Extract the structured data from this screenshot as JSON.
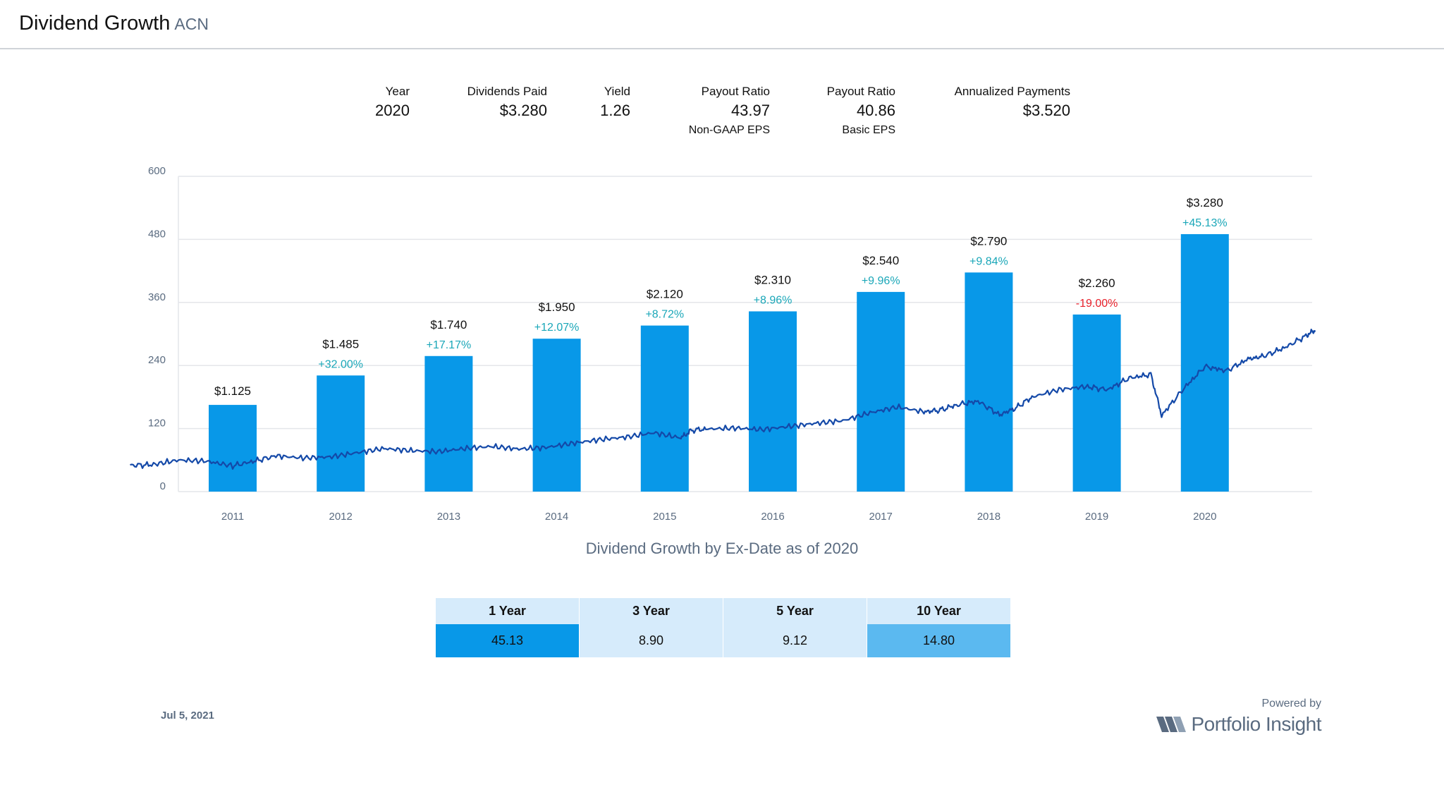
{
  "header": {
    "title": "Dividend Growth",
    "ticker": "ACN"
  },
  "stats": [
    {
      "label": "Year",
      "value": "2020",
      "sub": ""
    },
    {
      "label": "Dividends Paid",
      "value": "$3.280",
      "sub": ""
    },
    {
      "label": "Yield",
      "value": "1.26",
      "sub": ""
    },
    {
      "label": "Payout Ratio",
      "value": "43.97",
      "sub": "Non-GAAP EPS"
    },
    {
      "label": "Payout Ratio",
      "value": "40.86",
      "sub": "Basic EPS"
    },
    {
      "label": "Annualized Payments",
      "value": "$3.520",
      "sub": ""
    }
  ],
  "chart_data": {
    "type": "bar",
    "categories": [
      "2011",
      "2012",
      "2013",
      "2014",
      "2015",
      "2016",
      "2017",
      "2018",
      "2019",
      "2020"
    ],
    "values": [
      165,
      221,
      258,
      291,
      316,
      343,
      380,
      417,
      337,
      490
    ],
    "value_labels": [
      "$1.125",
      "$1.485",
      "$1.740",
      "$1.950",
      "$2.120",
      "$2.310",
      "$2.540",
      "$2.790",
      "$2.260",
      "$3.280"
    ],
    "growth_labels": [
      "",
      "+32.00%",
      "+17.17%",
      "+12.07%",
      "+8.72%",
      "+8.96%",
      "+9.96%",
      "+9.84%",
      "-19.00%",
      "+45.13%"
    ],
    "yticks": [
      0,
      120,
      240,
      360,
      480,
      600
    ],
    "ylim": [
      0,
      600
    ],
    "grid": true,
    "colors": {
      "bar": "#0898e8",
      "line": "#1449a8",
      "positive": "#1aa7b8",
      "negative": "#e8202a",
      "grid": "#e4e6ea",
      "tick": "#5a6b80"
    },
    "price_series": {
      "name": "",
      "x": [
        2010.55,
        2010.75,
        2011.0,
        2011.25,
        2011.5,
        2011.7,
        2011.9,
        2012.15,
        2012.4,
        2012.65,
        2012.9,
        2013.15,
        2013.4,
        2013.65,
        2013.9,
        2014.15,
        2014.4,
        2014.65,
        2014.9,
        2015.15,
        2015.4,
        2015.65,
        2015.75,
        2015.9,
        2016.15,
        2016.4,
        2016.65,
        2016.9,
        2017.15,
        2017.4,
        2017.65,
        2017.9,
        2018.05,
        2018.2,
        2018.4,
        2018.6,
        2018.75,
        2018.9,
        2019.15,
        2019.4,
        2019.6,
        2019.8,
        2020.0,
        2020.1,
        2020.3,
        2020.5,
        2020.7,
        2020.9,
        2021.05,
        2021.25,
        2021.45,
        2021.52
      ],
      "y": [
        50,
        51,
        60,
        58,
        49,
        58,
        68,
        64,
        66,
        74,
        82,
        78,
        76,
        82,
        86,
        81,
        84,
        92,
        99,
        104,
        112,
        102,
        117,
        119,
        121,
        118,
        124,
        130,
        135,
        150,
        161,
        152,
        155,
        165,
        172,
        146,
        159,
        180,
        194,
        200,
        194,
        216,
        223,
        145,
        195,
        238,
        230,
        252,
        258,
        275,
        298,
        307
      ]
    }
  },
  "chart_subtitle": "Dividend Growth by Ex-Date as of 2020",
  "growth_table": {
    "headers": [
      "1 Year",
      "3 Year",
      "5 Year",
      "10 Year"
    ],
    "values": [
      "45.13",
      "8.90",
      "9.12",
      "14.80"
    ],
    "cell_colors": [
      "#0898e8",
      "#d6ebfb",
      "#d6ebfb",
      "#5bb9f0"
    ]
  },
  "footer": {
    "date": "Jul 5, 2021",
    "powered_by": "Powered by",
    "brand": "Portfolio Insight",
    "brand_color": "#5a6b80"
  }
}
